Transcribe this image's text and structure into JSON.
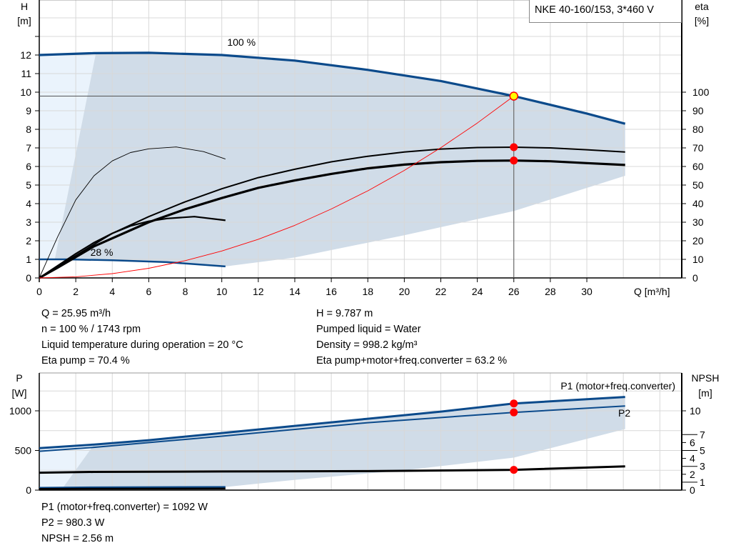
{
  "title": "NKE 40-160/153, 3*460 V",
  "colors": {
    "curve_blue": "#0b4a8b",
    "area_dark": "#d0dce8",
    "area_light": "#eaf3fc",
    "system_curve": "#ff0000",
    "duty_point": "#ff0000",
    "duty_fill_top": "#ffff00",
    "grid": "#d8d8d8"
  },
  "chart_data": [
    {
      "type": "line",
      "id": "qh",
      "xlabel": "Q [m³/h]",
      "ylabel_left": "H",
      "ylabel_left_unit": "[m]",
      "ylabel_right": "eta",
      "ylabel_right_unit": "[%]",
      "xlim": [
        0,
        35.2
      ],
      "ylim_left": [
        0,
        15
      ],
      "ylim_right": [
        0,
        150
      ],
      "grid": true,
      "xticks": [
        "0",
        "2",
        "4",
        "6",
        "8",
        "10",
        "12",
        "14",
        "16",
        "18",
        "20",
        "22",
        "24",
        "26",
        "28",
        "30"
      ],
      "yticks_left": [
        "0",
        "1",
        "2",
        "3",
        "4",
        "5",
        "6",
        "7",
        "8",
        "9",
        "10",
        "11",
        "12"
      ],
      "yticks_right": [
        "0",
        "10",
        "20",
        "30",
        "40",
        "50",
        "60",
        "70",
        "80",
        "90",
        "100"
      ],
      "annotations": [
        {
          "text": "100 %",
          "x": 10.3,
          "y": 12.5
        },
        {
          "text": "28 %",
          "x": 2.8,
          "y": 1.2
        }
      ],
      "series": [
        {
          "id": "h100",
          "axis": "left",
          "x": [
            0,
            3,
            6,
            10,
            14,
            18,
            22,
            26,
            30,
            32.1
          ],
          "y": [
            12.0,
            12.1,
            12.12,
            12.0,
            11.7,
            11.2,
            10.6,
            9.787,
            8.85,
            8.3
          ]
        },
        {
          "id": "h28",
          "axis": "left",
          "x": [
            0,
            1.5,
            4,
            7,
            10.2
          ],
          "y": [
            1.0,
            1.0,
            0.95,
            0.85,
            0.62
          ]
        },
        {
          "id": "eta_pump",
          "axis": "right",
          "x": [
            0,
            1,
            2,
            3,
            4,
            6,
            8,
            10,
            12,
            14,
            16,
            18,
            20,
            22,
            24,
            26,
            28,
            30,
            32.1
          ],
          "y": [
            0,
            6,
            12,
            18,
            24,
            33,
            41,
            48,
            54,
            58.5,
            62.5,
            65.5,
            67.8,
            69.4,
            70.2,
            70.4,
            70,
            69,
            67.8
          ]
        },
        {
          "id": "eta_total",
          "axis": "right",
          "x": [
            0,
            1,
            3,
            6,
            8,
            10,
            12,
            14,
            16,
            18,
            20,
            22,
            24,
            26,
            28,
            30,
            32.1
          ],
          "y": [
            0,
            5.5,
            17,
            30,
            37,
            43,
            48.5,
            52.5,
            56,
            59,
            61,
            62.3,
            63,
            63.2,
            62.8,
            61.8,
            60.8
          ]
        },
        {
          "id": "eta_pump_28",
          "axis": "right",
          "x": [
            0,
            1,
            2,
            3,
            4,
            5,
            6,
            7.5,
            9,
            10.2
          ],
          "y": [
            0,
            22,
            42,
            55,
            63,
            67.5,
            69.5,
            70.5,
            68,
            64
          ]
        },
        {
          "id": "eta_total_28",
          "axis": "right",
          "x": [
            0,
            2,
            3,
            4,
            5,
            6,
            7,
            8.5,
            10.2
          ],
          "y": [
            0,
            13,
            19,
            24,
            28,
            30.5,
            32,
            33,
            31
          ]
        },
        {
          "id": "system",
          "axis": "left",
          "x": [
            0,
            2,
            4,
            6,
            8,
            10,
            12,
            14,
            16,
            18,
            20,
            22,
            24,
            26
          ],
          "y": [
            0,
            0.06,
            0.23,
            0.52,
            0.93,
            1.45,
            2.08,
            2.83,
            3.71,
            4.69,
            5.79,
            7.01,
            8.34,
            9.787
          ]
        }
      ],
      "duty_points": [
        {
          "x": 26,
          "y": 9.787,
          "axis": "left"
        },
        {
          "x": 26,
          "y": 70.4,
          "axis": "right"
        },
        {
          "x": 26,
          "y": 63.2,
          "axis": "right"
        }
      ]
    },
    {
      "type": "line",
      "id": "power",
      "ylabel_left": "P",
      "ylabel_left_unit": "[W]",
      "ylabel_right": "NPSH",
      "ylabel_right_unit": "[m]",
      "xlim": [
        0,
        35.2
      ],
      "ylim_left": [
        0,
        1480
      ],
      "ylim_right": [
        0,
        14.8
      ],
      "grid": true,
      "yticks_left": [
        "0",
        "500",
        "1000"
      ],
      "yticks_right": [
        "0",
        "1",
        "2",
        "3",
        "4",
        "5",
        "6",
        "7",
        "10"
      ],
      "series": [
        {
          "id": "p1",
          "name": "P1 (motor+freq.converter)",
          "axis": "left",
          "x": [
            0,
            3,
            6,
            10,
            14,
            18,
            22,
            26,
            32.1
          ],
          "y": [
            530,
            575,
            630,
            720,
            810,
            900,
            990,
            1092,
            1175
          ]
        },
        {
          "id": "p2",
          "name": "P2",
          "axis": "left",
          "x": [
            0,
            3,
            10,
            18,
            26,
            32.1
          ],
          "y": [
            490,
            540,
            680,
            850,
            980.3,
            1060
          ]
        },
        {
          "id": "npsh",
          "axis": "right",
          "x": [
            0,
            3,
            10,
            18,
            26,
            32.1
          ],
          "y": [
            2.2,
            2.3,
            2.35,
            2.4,
            2.56,
            3.0
          ]
        },
        {
          "id": "p1_28",
          "axis": "left",
          "x": [
            0,
            3,
            10.2
          ],
          "y": [
            30,
            35,
            40
          ]
        },
        {
          "id": "npsh_28",
          "axis": "right",
          "x": [
            0,
            3,
            10.2
          ],
          "y": [
            0.15,
            0.18,
            0.2
          ]
        }
      ],
      "duty_points": [
        {
          "x": 26,
          "y": 1092,
          "axis": "left"
        },
        {
          "x": 26,
          "y": 980.3,
          "axis": "left"
        },
        {
          "x": 26,
          "y": 2.56,
          "axis": "right"
        }
      ]
    }
  ],
  "info_top_left": [
    "Q = 25.95 m³/h",
    "n = 100 % / 1743 rpm",
    "Liquid temperature during operation = 20 °C",
    "Eta pump = 70.4 %"
  ],
  "info_top_right": [
    "H = 9.787 m",
    "Pumped liquid = Water",
    "Density = 998.2 kg/m³",
    "Eta pump+motor+freq.converter = 63.2 %"
  ],
  "info_bottom": [
    "P1 (motor+freq.converter) = 1092 W",
    "P2 = 980.3 W",
    "NPSH = 2.56 m"
  ]
}
